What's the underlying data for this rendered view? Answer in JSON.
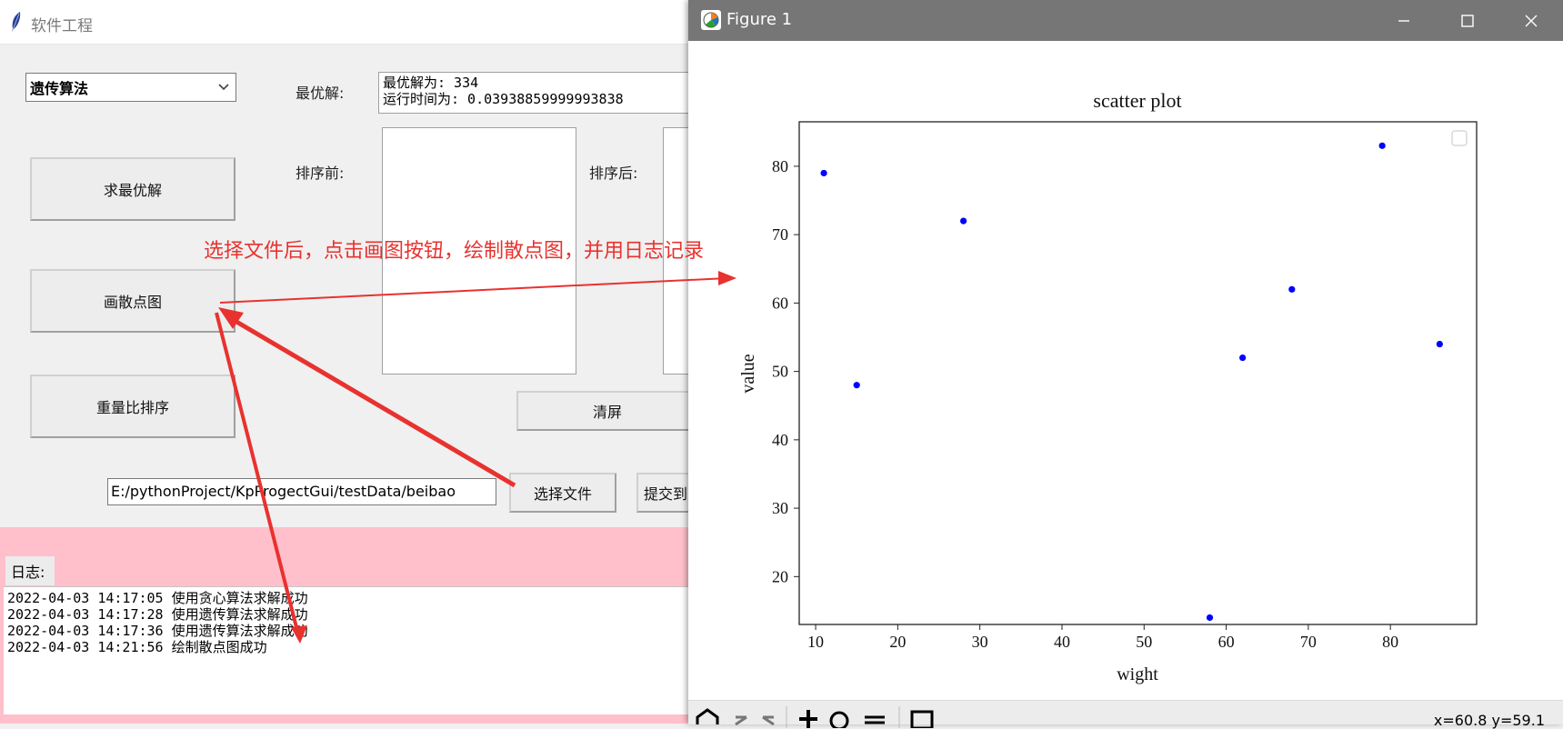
{
  "main_window": {
    "title": "软件工程",
    "algorithm_select": {
      "value": "遗传算法"
    },
    "best_solution_label": "最优解:",
    "best_solution_text": "最优解为: 334\n运行时间为: 0.03938859999993838",
    "before_sort_label": "排序前:",
    "after_sort_label": "排序后:",
    "buttons": {
      "solve": "求最优解",
      "scatter": "画散点图",
      "sort": "重量比排序",
      "clear": "清屏",
      "choose_file": "选择文件",
      "submit": "提交到"
    },
    "file_path": "E:/pythonProject/KpProgectGui/testData/beibao",
    "log_label": "日志:",
    "log_lines": [
      "2022-04-03 14:17:05 使用贪心算法求解成功",
      "2022-04-03 14:17:28 使用遗传算法求解成功",
      "2022-04-03 14:17:36 使用遗传算法求解成功",
      "2022-04-03 14:21:56 绘制散点图成功"
    ]
  },
  "annotation": {
    "text": "选择文件后，点击画图按钮，绘制散点图，并用日志记录",
    "color": "#e8322f"
  },
  "figure_window": {
    "title": "Figure 1",
    "coord_readout": "x=60.8 y=59.1",
    "controls": [
      "minimize-icon",
      "maximize-icon",
      "close-icon"
    ],
    "toolbar_icons": [
      "home-icon",
      "back-icon",
      "forward-icon",
      "pan-icon",
      "zoom-icon",
      "configure-icon",
      "save-icon"
    ]
  },
  "chart_data": {
    "type": "scatter",
    "title": "scatter plot",
    "xlabel": "wight",
    "ylabel": "value",
    "xlim": [
      8,
      90.5
    ],
    "ylim": [
      13,
      86.5
    ],
    "xticks": [
      10,
      20,
      30,
      40,
      50,
      60,
      70,
      80
    ],
    "yticks": [
      20,
      30,
      40,
      50,
      60,
      70,
      80
    ],
    "point_color": "#0000ff",
    "legend": "top-right (empty)",
    "series": [
      {
        "x": [
          11,
          15,
          28,
          58,
          62,
          68,
          79,
          86
        ],
        "y": [
          79,
          48,
          72,
          14,
          52,
          62,
          83,
          54
        ]
      }
    ]
  }
}
